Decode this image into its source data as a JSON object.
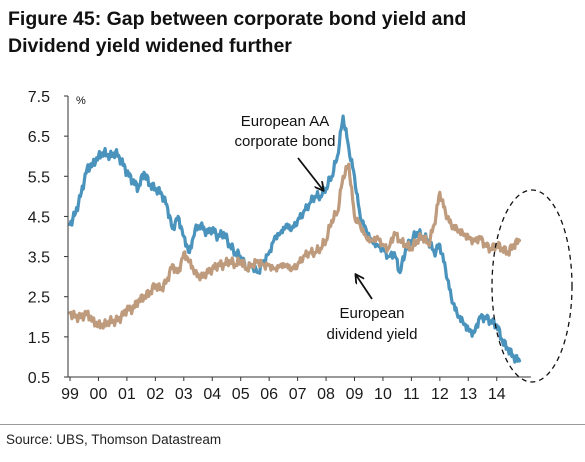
{
  "figure": {
    "title_line1": "Figure 45: Gap between corporate bond yield and",
    "title_line2": "Dividend yield widened further",
    "source": "Source:  UBS, Thomson Datastream"
  },
  "chart_data": {
    "type": "line",
    "ylabel": "%",
    "ylim": [
      0.5,
      7.5
    ],
    "xlim": [
      1999.0,
      2015.2
    ],
    "y_ticks": [
      "7.5",
      "6.5",
      "5.5",
      "4.5",
      "3.5",
      "2.5",
      "1.5",
      "0.5"
    ],
    "x_ticks": [
      "99",
      "00",
      "01",
      "02",
      "03",
      "04",
      "05",
      "06",
      "07",
      "08",
      "09",
      "10",
      "11",
      "12",
      "13",
      "14"
    ],
    "annotations": {
      "corporate_line1": "European AA",
      "corporate_line2": "corporate bond",
      "dividend_line1": "European",
      "dividend_line2": "dividend yield"
    },
    "colors": {
      "corporate": "#4a93bd",
      "dividend": "#bf9b7e"
    },
    "series": [
      {
        "key": "corporate",
        "x": [
          1999.0,
          1999.2,
          1999.4,
          1999.6,
          1999.8,
          2000.0,
          2000.2,
          2000.4,
          2000.6,
          2000.8,
          2001.0,
          2001.2,
          2001.4,
          2001.6,
          2001.8,
          2002.0,
          2002.2,
          2002.4,
          2002.6,
          2002.8,
          2003.0,
          2003.2,
          2003.4,
          2003.6,
          2003.8,
          2004.0,
          2004.2,
          2004.4,
          2004.6,
          2004.8,
          2005.0,
          2005.2,
          2005.4,
          2005.6,
          2005.8,
          2006.0,
          2006.2,
          2006.4,
          2006.6,
          2006.8,
          2007.0,
          2007.2,
          2007.4,
          2007.6,
          2007.8,
          2008.0,
          2008.2,
          2008.4,
          2008.6,
          2008.8,
          2009.0,
          2009.2,
          2009.4,
          2009.6,
          2009.8,
          2010.0,
          2010.2,
          2010.4,
          2010.6,
          2010.8,
          2011.0,
          2011.2,
          2011.4,
          2011.6,
          2011.8,
          2012.0,
          2012.2,
          2012.4,
          2012.6,
          2012.8,
          2013.0,
          2013.2,
          2013.4,
          2013.6,
          2013.8,
          2014.0,
          2014.2,
          2014.4,
          2014.6,
          2014.8
        ],
        "values": [
          4.3,
          4.6,
          5.1,
          5.7,
          5.8,
          6.0,
          6.1,
          6.0,
          6.1,
          5.9,
          5.6,
          5.4,
          5.2,
          5.6,
          5.3,
          5.2,
          5.1,
          4.8,
          4.2,
          4.5,
          4.0,
          3.6,
          4.2,
          4.3,
          4.1,
          4.2,
          4.0,
          4.1,
          3.8,
          3.6,
          3.5,
          3.2,
          3.3,
          3.1,
          3.4,
          3.6,
          4.0,
          4.1,
          4.3,
          4.2,
          4.4,
          4.6,
          4.8,
          5.0,
          5.0,
          5.2,
          5.5,
          6.0,
          7.0,
          6.2,
          5.5,
          4.5,
          4.2,
          3.9,
          3.8,
          3.7,
          3.5,
          3.6,
          3.1,
          3.7,
          3.9,
          4.1,
          4.0,
          3.9,
          3.6,
          3.8,
          3.2,
          2.5,
          2.1,
          1.9,
          1.7,
          1.6,
          2.0,
          2.0,
          1.9,
          1.8,
          1.4,
          1.2,
          1.0,
          0.9
        ]
      },
      {
        "key": "dividend",
        "x": [
          1999.0,
          1999.2,
          1999.4,
          1999.6,
          1999.8,
          2000.0,
          2000.2,
          2000.4,
          2000.6,
          2000.8,
          2001.0,
          2001.2,
          2001.4,
          2001.6,
          2001.8,
          2002.0,
          2002.2,
          2002.4,
          2002.6,
          2002.8,
          2003.0,
          2003.2,
          2003.4,
          2003.6,
          2003.8,
          2004.0,
          2004.2,
          2004.4,
          2004.6,
          2004.8,
          2005.0,
          2005.2,
          2005.4,
          2005.6,
          2005.8,
          2006.0,
          2006.2,
          2006.4,
          2006.6,
          2006.8,
          2007.0,
          2007.2,
          2007.4,
          2007.6,
          2007.8,
          2008.0,
          2008.2,
          2008.4,
          2008.6,
          2008.8,
          2009.0,
          2009.2,
          2009.4,
          2009.6,
          2009.8,
          2010.0,
          2010.2,
          2010.4,
          2010.6,
          2010.8,
          2011.0,
          2011.2,
          2011.4,
          2011.6,
          2011.8,
          2012.0,
          2012.2,
          2012.4,
          2012.6,
          2012.8,
          2013.0,
          2013.2,
          2013.4,
          2013.6,
          2013.8,
          2014.0,
          2014.2,
          2014.4,
          2014.6,
          2014.8
        ],
        "values": [
          2.1,
          2.0,
          2.0,
          2.1,
          1.9,
          1.8,
          1.8,
          1.9,
          1.9,
          2.0,
          2.2,
          2.2,
          2.4,
          2.5,
          2.6,
          2.8,
          2.7,
          2.9,
          3.3,
          3.1,
          3.6,
          3.4,
          3.1,
          3.0,
          3.1,
          3.2,
          3.3,
          3.3,
          3.4,
          3.3,
          3.4,
          3.2,
          3.3,
          3.4,
          3.3,
          3.3,
          3.2,
          3.3,
          3.3,
          3.2,
          3.3,
          3.5,
          3.6,
          3.6,
          3.7,
          3.9,
          4.4,
          4.6,
          5.5,
          5.8,
          4.5,
          4.3,
          4.0,
          3.9,
          4.0,
          3.8,
          3.7,
          4.1,
          3.9,
          3.8,
          3.7,
          3.9,
          4.0,
          3.8,
          4.3,
          5.1,
          4.6,
          4.3,
          4.2,
          4.1,
          4.0,
          3.9,
          4.0,
          3.8,
          3.7,
          3.8,
          3.7,
          3.6,
          3.8,
          3.9
        ]
      }
    ]
  }
}
